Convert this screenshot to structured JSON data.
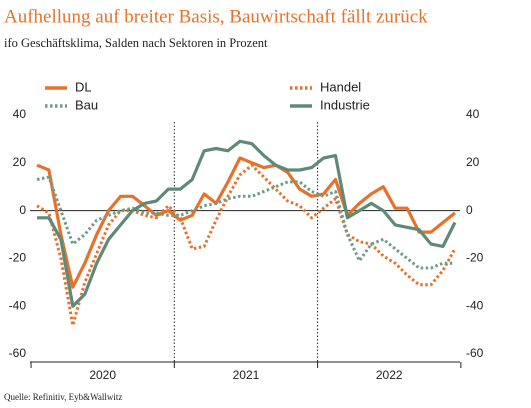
{
  "chart_data": {
    "type": "line",
    "title": "Aufhellung auf breiter Basis, Bauwirtschaft fällt zurück",
    "subtitle": "ifo Geschäftsklima, Salden nach Sektoren in Prozent",
    "source": "Quelle: Refinitiv, Eyb&Wallwitz",
    "categories": [
      null,
      null,
      null,
      null,
      null,
      null,
      null,
      null,
      null,
      null,
      null,
      null,
      null,
      null,
      null,
      null,
      null,
      null,
      null,
      null,
      null,
      null,
      null,
      null,
      null,
      null,
      null,
      null,
      null,
      null,
      null,
      null,
      null,
      null,
      null,
      null
    ],
    "x_groups": [
      "2020",
      "2021",
      "2022"
    ],
    "series": [
      {
        "name": "DL",
        "color": "#e8712a",
        "dotted": false,
        "values": [
          19,
          17,
          -10,
          -32,
          -22,
          -10,
          0,
          6,
          6,
          2,
          -2,
          0,
          -4,
          -2,
          7,
          3,
          12,
          22,
          20,
          18,
          19,
          16,
          9,
          6,
          7,
          13,
          -2,
          3,
          7,
          10,
          1,
          1,
          -9,
          -9,
          -5,
          -1
        ]
      },
      {
        "name": "Handel",
        "color": "#e8712a",
        "dotted": true,
        "values": [
          2,
          -1,
          -20,
          -48,
          -30,
          -18,
          -6,
          0,
          0,
          -2,
          -3,
          2,
          -3,
          -16,
          -15,
          -4,
          6,
          15,
          19,
          14,
          9,
          4,
          2,
          -3,
          1,
          5,
          -10,
          -13,
          -14,
          -19,
          -22,
          -27,
          -31,
          -31,
          -25,
          -16
        ]
      },
      {
        "name": "Bau",
        "color": "#6f9c8a",
        "dotted": true,
        "values": [
          13,
          14,
          0,
          -14,
          -10,
          -4,
          -2,
          0,
          1,
          -1,
          -1,
          -2,
          -2,
          0,
          2,
          3,
          5,
          6,
          6,
          8,
          10,
          12,
          12,
          8,
          6,
          8,
          -10,
          -21,
          -14,
          -12,
          -16,
          -20,
          -24,
          -24,
          -22,
          -22
        ]
      },
      {
        "name": "Industrie",
        "color": "#5f8a7a",
        "dotted": false,
        "values": [
          -3,
          -3,
          -12,
          -40,
          -35,
          -22,
          -12,
          -6,
          0,
          3,
          4,
          9,
          9,
          13,
          25,
          26,
          25,
          29,
          28,
          23,
          19,
          17,
          17,
          18,
          22,
          23,
          -3,
          0,
          3,
          0,
          -6,
          -7,
          -8,
          -14,
          -15,
          -5
        ]
      }
    ],
    "ylim": [
      -60,
      40
    ],
    "yticks": [
      -60,
      -40,
      -20,
      0,
      20,
      40
    ],
    "y2lim": [
      -60,
      40
    ],
    "y2ticks": [
      -60,
      -40,
      -20,
      0,
      20,
      40
    ]
  }
}
